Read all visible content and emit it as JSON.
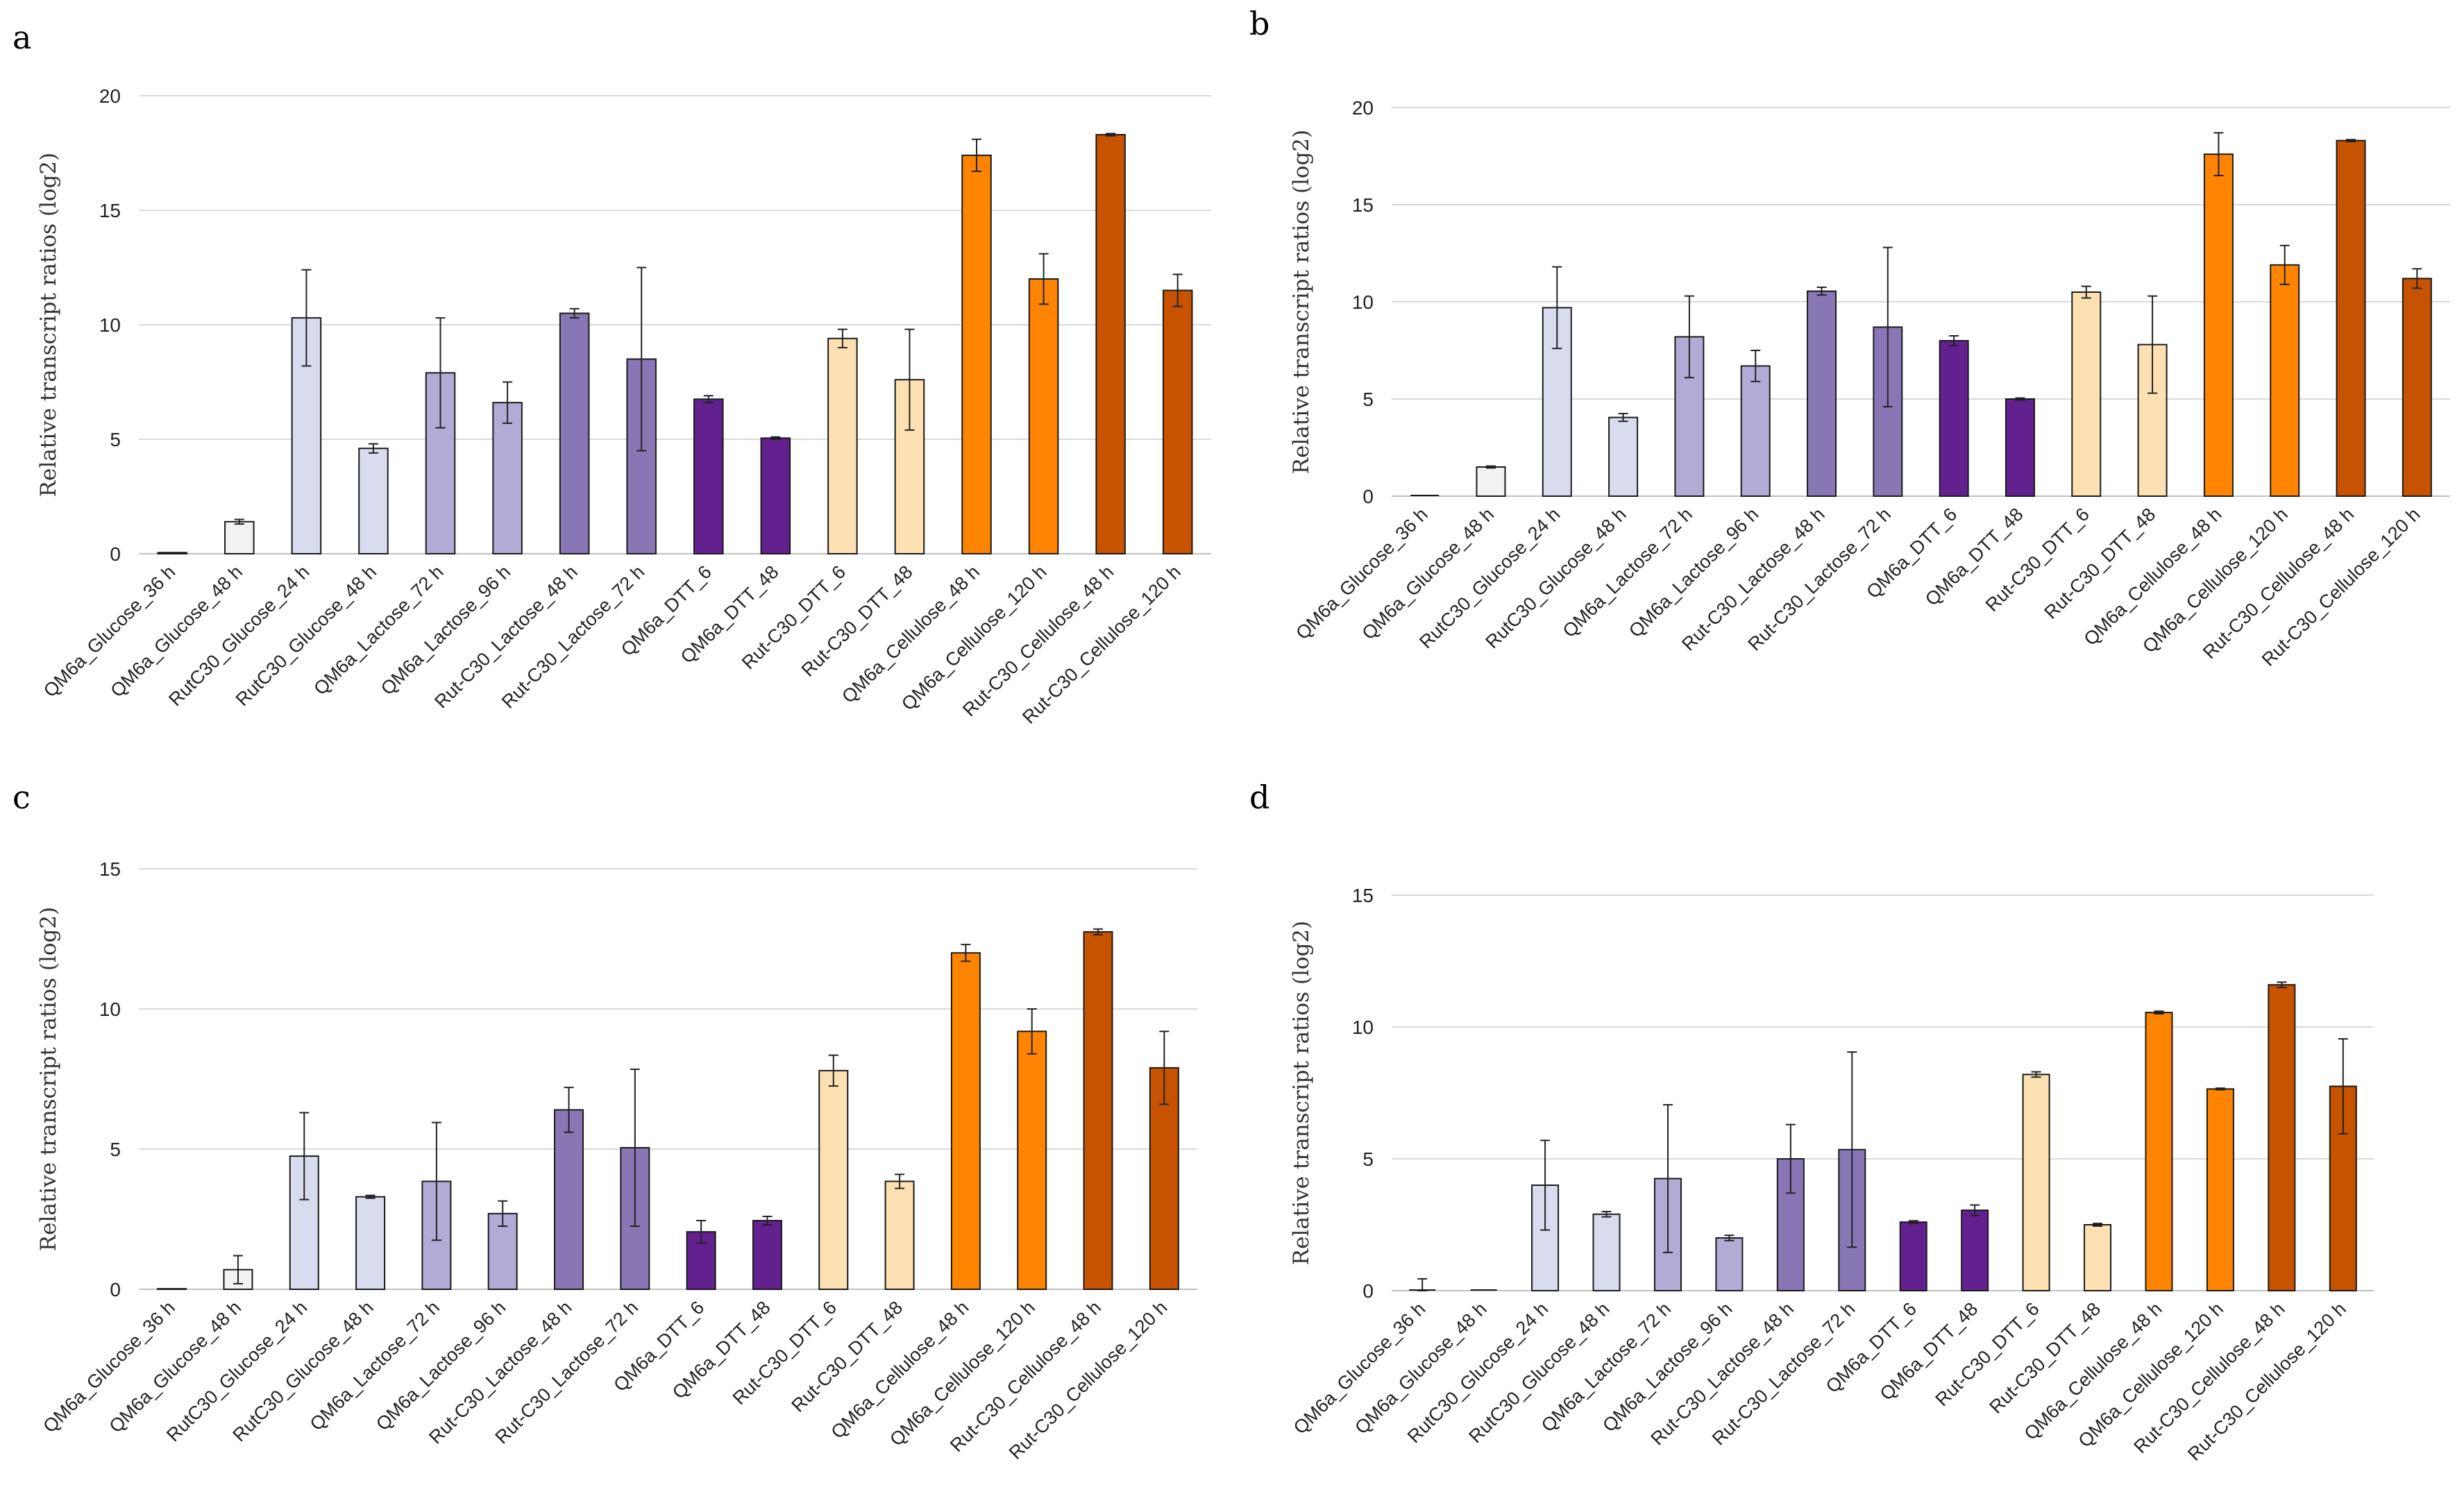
{
  "figure": {
    "panels": [
      "a",
      "b",
      "c",
      "d"
    ]
  },
  "chart_data": [
    {
      "panel": "a",
      "type": "bar",
      "ylabel": "Relative transcript ratios (log2)",
      "ylim": [
        0,
        20
      ],
      "yticks": [
        0,
        5,
        10,
        15,
        20
      ],
      "grid": true,
      "categories": [
        "QM6a_Glucose_36 h",
        "QM6a_Glucose_48 h",
        "RutC30_Glucose_24 h",
        "RutC30_Glucose_48 h",
        "QM6a_Lactose_72 h",
        "QM6a_Lactose_96 h",
        "Rut-C30_Lactose_48 h",
        "Rut-C30_Lactose_72 h",
        "QM6a_DTT_6",
        "QM6a_DTT_48",
        "Rut-C30_DTT_6",
        "Rut-C30_DTT_48",
        "QM6a_Cellulose_48 h",
        "QM6a_Cellulose_120 h",
        "Rut-C30_Cellulose_48 h",
        "Rut-C30_Cellulose_120 h"
      ],
      "values": [
        0.05,
        1.4,
        10.3,
        4.6,
        7.9,
        6.6,
        10.5,
        8.5,
        6.75,
        5.05,
        9.4,
        7.6,
        17.4,
        12.0,
        18.3,
        11.5
      ],
      "errors": [
        0,
        0.1,
        2.1,
        0.2,
        2.4,
        0.9,
        0.2,
        4.0,
        0.15,
        0.05,
        0.4,
        2.2,
        0.7,
        1.1,
        0.05,
        0.7
      ],
      "colors": [
        "#ffffff",
        "#f2f2f2",
        "#d9dcee",
        "#d9dcee",
        "#b3abd5",
        "#b3abd5",
        "#8977b5",
        "#8977b5",
        "#63208f",
        "#63208f",
        "#fde1b2",
        "#fde1b2",
        "#fe8401",
        "#fe8401",
        "#c75200",
        "#c75200"
      ]
    },
    {
      "panel": "b",
      "type": "bar",
      "ylabel": "Relative transcript ratios (log2)",
      "ylim": [
        0,
        20
      ],
      "yticks": [
        0,
        5,
        10,
        15,
        20
      ],
      "grid": true,
      "categories": [
        "QM6a_Glucose_36 h",
        "QM6a_Glucose_48 h",
        "RutC30_Glucose_24 h",
        "RutC30_Glucose_48 h",
        "QM6a_Lactose_72 h",
        "QM6a_Lactose_96 h",
        "Rut-C30_Lactose_48 h",
        "Rut-C30_Lactose_72 h",
        "QM6a_DTT_6",
        "QM6a_DTT_48",
        "Rut-C30_DTT_6",
        "Rut-C30_DTT_48",
        "QM6a_Cellulose_48 h",
        "QM6a_Cellulose_120 h",
        "Rut-C30_Cellulose_48 h",
        "Rut-C30_Cellulose_120 h"
      ],
      "values": [
        0,
        1.5,
        9.7,
        4.05,
        8.2,
        6.7,
        10.55,
        8.7,
        8.0,
        5.0,
        10.5,
        7.8,
        17.6,
        11.9,
        18.3,
        11.2
      ],
      "errors": [
        0,
        0.05,
        2.1,
        0.2,
        2.1,
        0.8,
        0.2,
        4.1,
        0.25,
        0.05,
        0.3,
        2.5,
        1.1,
        1.0,
        0.05,
        0.5
      ],
      "colors": [
        "#ffffff",
        "#f2f2f2",
        "#d9dcee",
        "#d9dcee",
        "#b3abd5",
        "#b3abd5",
        "#8977b5",
        "#8977b5",
        "#63208f",
        "#63208f",
        "#fde1b2",
        "#fde1b2",
        "#fe8401",
        "#fe8401",
        "#c75200",
        "#c75200"
      ]
    },
    {
      "panel": "c",
      "type": "bar",
      "ylabel": "Relative transcript ratios (log2)",
      "ylim": [
        0,
        15
      ],
      "yticks": [
        0,
        5,
        10,
        15
      ],
      "grid": true,
      "categories": [
        "QM6a_Glucose_36 h",
        "QM6a_Glucose_48 h",
        "RutC30_Glucose_24 h",
        "RutC30_Glucose_48 h",
        "QM6a_Lactose_72 h",
        "QM6a_Lactose_96 h",
        "Rut-C30_Lactose_48 h",
        "Rut-C30_Lactose_72 h",
        "QM6a_DTT_6",
        "QM6a_DTT_48",
        "Rut-C30_DTT_6",
        "Rut-C30_DTT_48",
        "QM6a_Cellulose_48 h",
        "QM6a_Cellulose_120 h",
        "Rut-C30_Cellulose_48 h",
        "Rut-C30_Cellulose_120 h"
      ],
      "values": [
        0.02,
        0.7,
        4.75,
        3.3,
        3.85,
        2.7,
        6.4,
        5.05,
        2.05,
        2.45,
        7.8,
        3.85,
        12.0,
        9.2,
        12.75,
        7.9
      ],
      "errors": [
        0,
        0.5,
        1.55,
        0.05,
        2.1,
        0.45,
        0.8,
        2.8,
        0.4,
        0.15,
        0.55,
        0.25,
        0.3,
        0.8,
        0.1,
        1.3
      ],
      "colors": [
        "#ffffff",
        "#f2f2f2",
        "#d9dcee",
        "#d9dcee",
        "#b3abd5",
        "#b3abd5",
        "#8977b5",
        "#8977b5",
        "#63208f",
        "#63208f",
        "#fde1b2",
        "#fde1b2",
        "#fe8401",
        "#fe8401",
        "#c75200",
        "#c75200"
      ]
    },
    {
      "panel": "d",
      "type": "bar",
      "ylabel": "Relative transcript ratios (log2)",
      "ylim": [
        0,
        15
      ],
      "yticks": [
        0,
        5,
        10,
        15
      ],
      "grid": true,
      "categories": [
        "QM6a_Glucose_36 h",
        "QM6a_Glucose_48 h",
        "RutC30_Glucose_24 h",
        "RutC30_Glucose_48 h",
        "QM6a_Lactose_72 h",
        "QM6a_Lactose_96 h",
        "Rut-C30_Lactose_48 h",
        "Rut-C30_Lactose_72 h",
        "QM6a_DTT_6",
        "QM6a_DTT_48",
        "Rut-C30_DTT_6",
        "Rut-C30_DTT_48",
        "QM6a_Cellulose_48 h",
        "QM6a_Cellulose_120 h",
        "Rut-C30_Cellulose_48 h",
        "Rut-C30_Cellulose_120 h"
      ],
      "values": [
        0,
        0,
        4.0,
        2.9,
        4.25,
        2.0,
        5.0,
        5.35,
        2.6,
        3.05,
        8.2,
        2.5,
        10.55,
        7.65,
        11.6,
        7.75
      ],
      "errors": [
        0.45,
        0,
        1.7,
        0.1,
        2.8,
        0.1,
        1.3,
        3.7,
        0.05,
        0.2,
        0.1,
        0.05,
        0.05,
        0.03,
        0.1,
        1.8
      ],
      "colors": [
        "#ffffff",
        "#f2f2f2",
        "#d9dcee",
        "#d9dcee",
        "#b3abd5",
        "#b3abd5",
        "#8977b5",
        "#8977b5",
        "#63208f",
        "#63208f",
        "#fde1b2",
        "#fde1b2",
        "#fe8401",
        "#fe8401",
        "#c75200",
        "#c75200"
      ]
    }
  ]
}
